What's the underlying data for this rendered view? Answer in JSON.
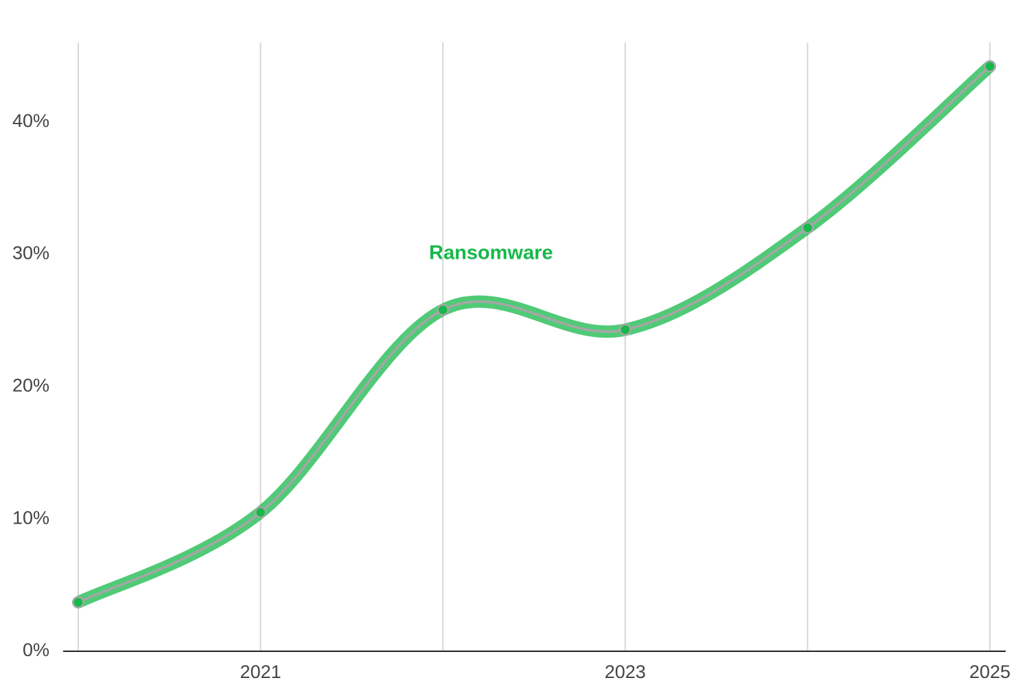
{
  "chart_data": {
    "type": "line",
    "categories": [
      null,
      "2021",
      null,
      "2023",
      null,
      "2025"
    ],
    "series": [
      {
        "name": "Ransomware",
        "color": "#16b84a",
        "line_color": "#a6a6a6",
        "values": [
          3.7,
          10.5,
          25.8,
          24.3,
          32.0,
          44.2
        ]
      }
    ],
    "ylim": [
      0,
      46
    ],
    "yticks": [
      {
        "value": 0,
        "label": "0%"
      },
      {
        "value": 10,
        "label": "10%"
      },
      {
        "value": 20,
        "label": "20%"
      },
      {
        "value": 30,
        "label": "30%"
      },
      {
        "value": 40,
        "label": "40%"
      }
    ],
    "grid": true
  }
}
